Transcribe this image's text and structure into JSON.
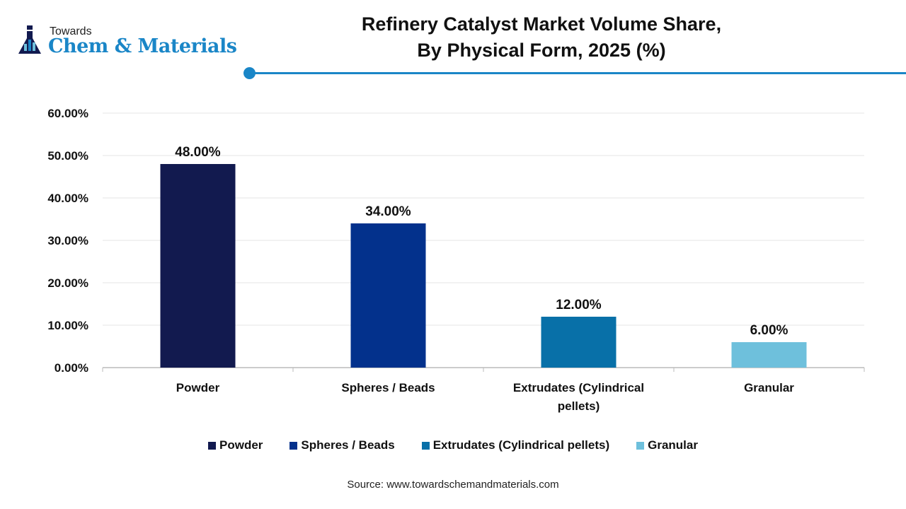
{
  "logo": {
    "line1": "Towards",
    "line2": "Chem & Materials"
  },
  "title_line1": "Refinery Catalyst Market Volume Share,",
  "title_line2": "By Physical Form, 2025 (%)",
  "source": "Source: www.towardschemandmaterials.com",
  "chart_data": {
    "type": "bar",
    "title": "Refinery Catalyst Market Volume Share, By Physical Form, 2025 (%)",
    "categories": [
      "Powder",
      "Spheres / Beads",
      "Extrudates (Cylindrical pellets)",
      "Granular"
    ],
    "category_labels": [
      [
        "Powder"
      ],
      [
        "Spheres / Beads"
      ],
      [
        "Extrudates (Cylindrical",
        "pellets)"
      ],
      [
        "Granular"
      ]
    ],
    "values": [
      48,
      34,
      12,
      6
    ],
    "data_labels": [
      "48.00%",
      "34.00%",
      "12.00%",
      "6.00%"
    ],
    "colors": [
      "#121a4f",
      "#03318c",
      "#0870a8",
      "#6ec0dc"
    ],
    "ylim": [
      0,
      60
    ],
    "yticks": [
      "0.00%",
      "10.00%",
      "20.00%",
      "30.00%",
      "40.00%",
      "50.00%",
      "60.00%"
    ],
    "grid": true,
    "legend_position": "bottom"
  }
}
